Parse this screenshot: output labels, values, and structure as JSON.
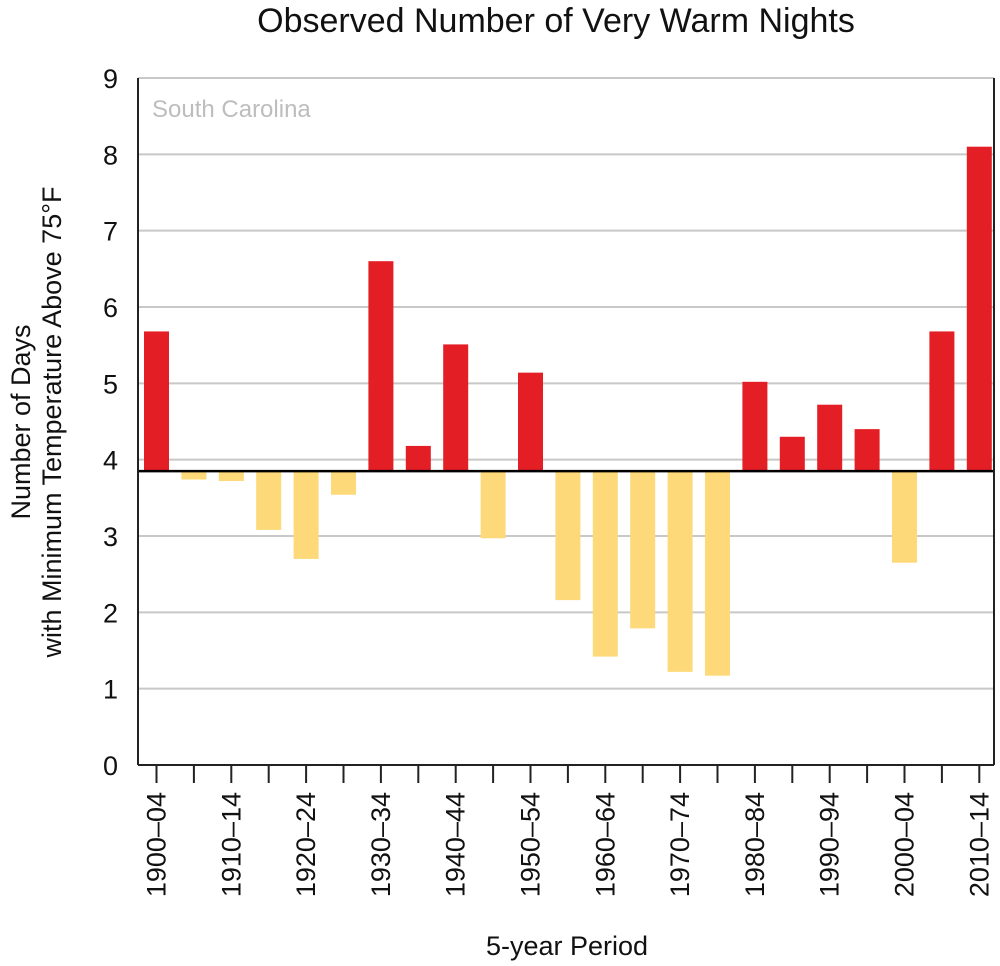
{
  "chart_data": {
    "type": "bar",
    "title": "Observed Number of Very Warm Nights",
    "region_label": "South Carolina",
    "xlabel": "5-year Period",
    "ylabel_line1": "Number of Days",
    "ylabel_line2": "with Minimum  Temperature Above 75°F",
    "ylim": [
      0,
      9
    ],
    "yticks": [
      "0",
      "1",
      "2",
      "3",
      "4",
      "5",
      "6",
      "7",
      "8",
      "9"
    ],
    "baseline": 3.85,
    "grid": true,
    "categories": [
      "1900–04",
      "1905–09",
      "1910–14",
      "1915–19",
      "1920–24",
      "1925–29",
      "1930–34",
      "1935–39",
      "1940–44",
      "1945–49",
      "1950–54",
      "1955–59",
      "1960–64",
      "1965–69",
      "1970–74",
      "1975–79",
      "1980–84",
      "1985–89",
      "1990–94",
      "1995–99",
      "2000–04",
      "2005–09",
      "2010–14"
    ],
    "xtick_labels": [
      "1900–04",
      "",
      "1910–14",
      "",
      "1920–24",
      "",
      "1930–34",
      "",
      "1940–44",
      "",
      "1950–54",
      "",
      "1960–64",
      "",
      "1970–74",
      "",
      "1980–84",
      "",
      "1990–94",
      "",
      "2000–04",
      "",
      "2010–14"
    ],
    "values": [
      5.68,
      3.74,
      3.72,
      3.08,
      2.7,
      3.54,
      6.6,
      4.18,
      5.51,
      2.97,
      5.14,
      2.16,
      1.42,
      1.79,
      1.22,
      1.17,
      5.02,
      4.3,
      4.72,
      4.4,
      2.65,
      5.68,
      8.1
    ],
    "colors": {
      "above": "#e31e24",
      "below": "#fdd979",
      "baseline": "#000000",
      "grid": "#c8c8c8",
      "region_label": "#bdbdbd"
    }
  }
}
